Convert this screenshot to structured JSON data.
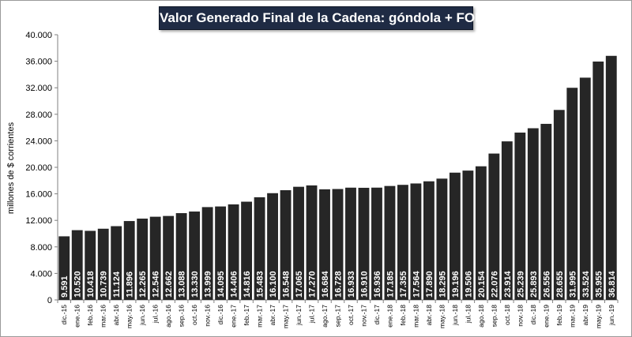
{
  "chart_data": {
    "type": "bar",
    "title": "Valor Generado Final de la Cadena: góndola + FOB",
    "xlabel": "",
    "ylabel": "millones de $ corrientes",
    "ylim": [
      0,
      40000
    ],
    "yticks": [
      "0",
      "4.000",
      "8.000",
      "12.000",
      "16.000",
      "20.000",
      "24.000",
      "28.000",
      "32.000",
      "36.000",
      "40.000"
    ],
    "grid": false,
    "legend": "none",
    "bar_color": "#262626",
    "categories": [
      "dic.-15",
      "ene.-16",
      "feb.-16",
      "mar.-16",
      "abr.-16",
      "may.-16",
      "jun.-16",
      "jul.-16",
      "ago.-16",
      "sep.-16",
      "oct.-16",
      "nov.-16",
      "dic.-16",
      "ene.-17",
      "feb.-17",
      "mar.-17",
      "abr.-17",
      "may.-17",
      "jun.-17",
      "jul.-17",
      "ago.-17",
      "sep.-17",
      "oct.-17",
      "nov.-17",
      "dic.-17",
      "ene.-18",
      "feb.-18",
      "mar.-18",
      "abr.-18",
      "may.-18",
      "jun.-18",
      "jul.-18",
      "ago.-18",
      "sep.-18",
      "oct.-18",
      "nov.-18",
      "dic.-18",
      "ene.-19",
      "feb.-19",
      "mar.-19",
      "abr.-19",
      "may.-19",
      "jun.-19"
    ],
    "values": [
      9591,
      10520,
      10418,
      10739,
      11124,
      11896,
      12265,
      12546,
      12662,
      13088,
      13330,
      13999,
      14095,
      14406,
      14816,
      15483,
      16100,
      16548,
      17065,
      17270,
      16684,
      16728,
      16933,
      16910,
      16936,
      17185,
      17355,
      17564,
      17890,
      18295,
      19196,
      19506,
      20154,
      22076,
      23914,
      25239,
      25893,
      26556,
      28655,
      31995,
      33524,
      35955,
      36814
    ],
    "labels": [
      "9.591",
      "10.520",
      "10.418",
      "10.739",
      "11.124",
      "11.896",
      "12.265",
      "12.546",
      "12.662",
      "13.088",
      "13.330",
      "13.999",
      "14.095",
      "14.406",
      "14.816",
      "15.483",
      "16.100",
      "16.548",
      "17.065",
      "17.270",
      "16.684",
      "16.728",
      "16.933",
      "16.910",
      "16.936",
      "17.185",
      "17.355",
      "17.564",
      "17.890",
      "18.295",
      "19.196",
      "19.506",
      "20.154",
      "22.076",
      "23.914",
      "25.239",
      "25.893",
      "26.556",
      "28.655",
      "31.995",
      "33.524",
      "35.955",
      "36.814"
    ]
  }
}
